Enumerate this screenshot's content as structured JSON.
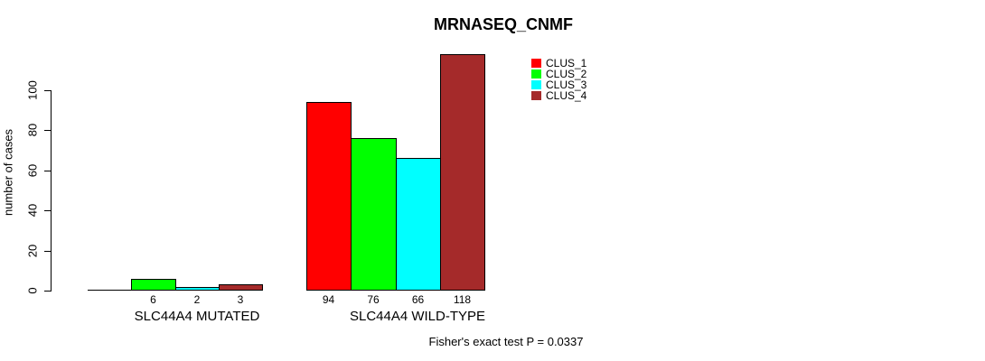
{
  "chart_data": {
    "type": "bar",
    "title": "MRNASEQ_CNMF",
    "ylabel": "number of cases",
    "footnote": "Fisher's exact test P = 0.0337",
    "yticks": [
      0,
      20,
      40,
      60,
      80,
      100
    ],
    "ylim": [
      0,
      100
    ],
    "grid": false,
    "legend_position": "top-right",
    "series": [
      {
        "name": "CLUS_1",
        "color": "#ff0000"
      },
      {
        "name": "CLUS_2",
        "color": "#00ff00"
      },
      {
        "name": "CLUS_3",
        "color": "#00ffff"
      },
      {
        "name": "CLUS_4",
        "color": "#a52a2a"
      }
    ],
    "groups": [
      {
        "label": "SLC44A4 MUTATED",
        "values": [
          0,
          6,
          2,
          3
        ],
        "value_labels": [
          "",
          "6",
          "2",
          "3"
        ]
      },
      {
        "label": "SLC44A4 WILD-TYPE",
        "values": [
          94,
          76,
          66,
          118
        ],
        "value_labels": [
          "94",
          "76",
          "66",
          "118"
        ]
      }
    ]
  }
}
